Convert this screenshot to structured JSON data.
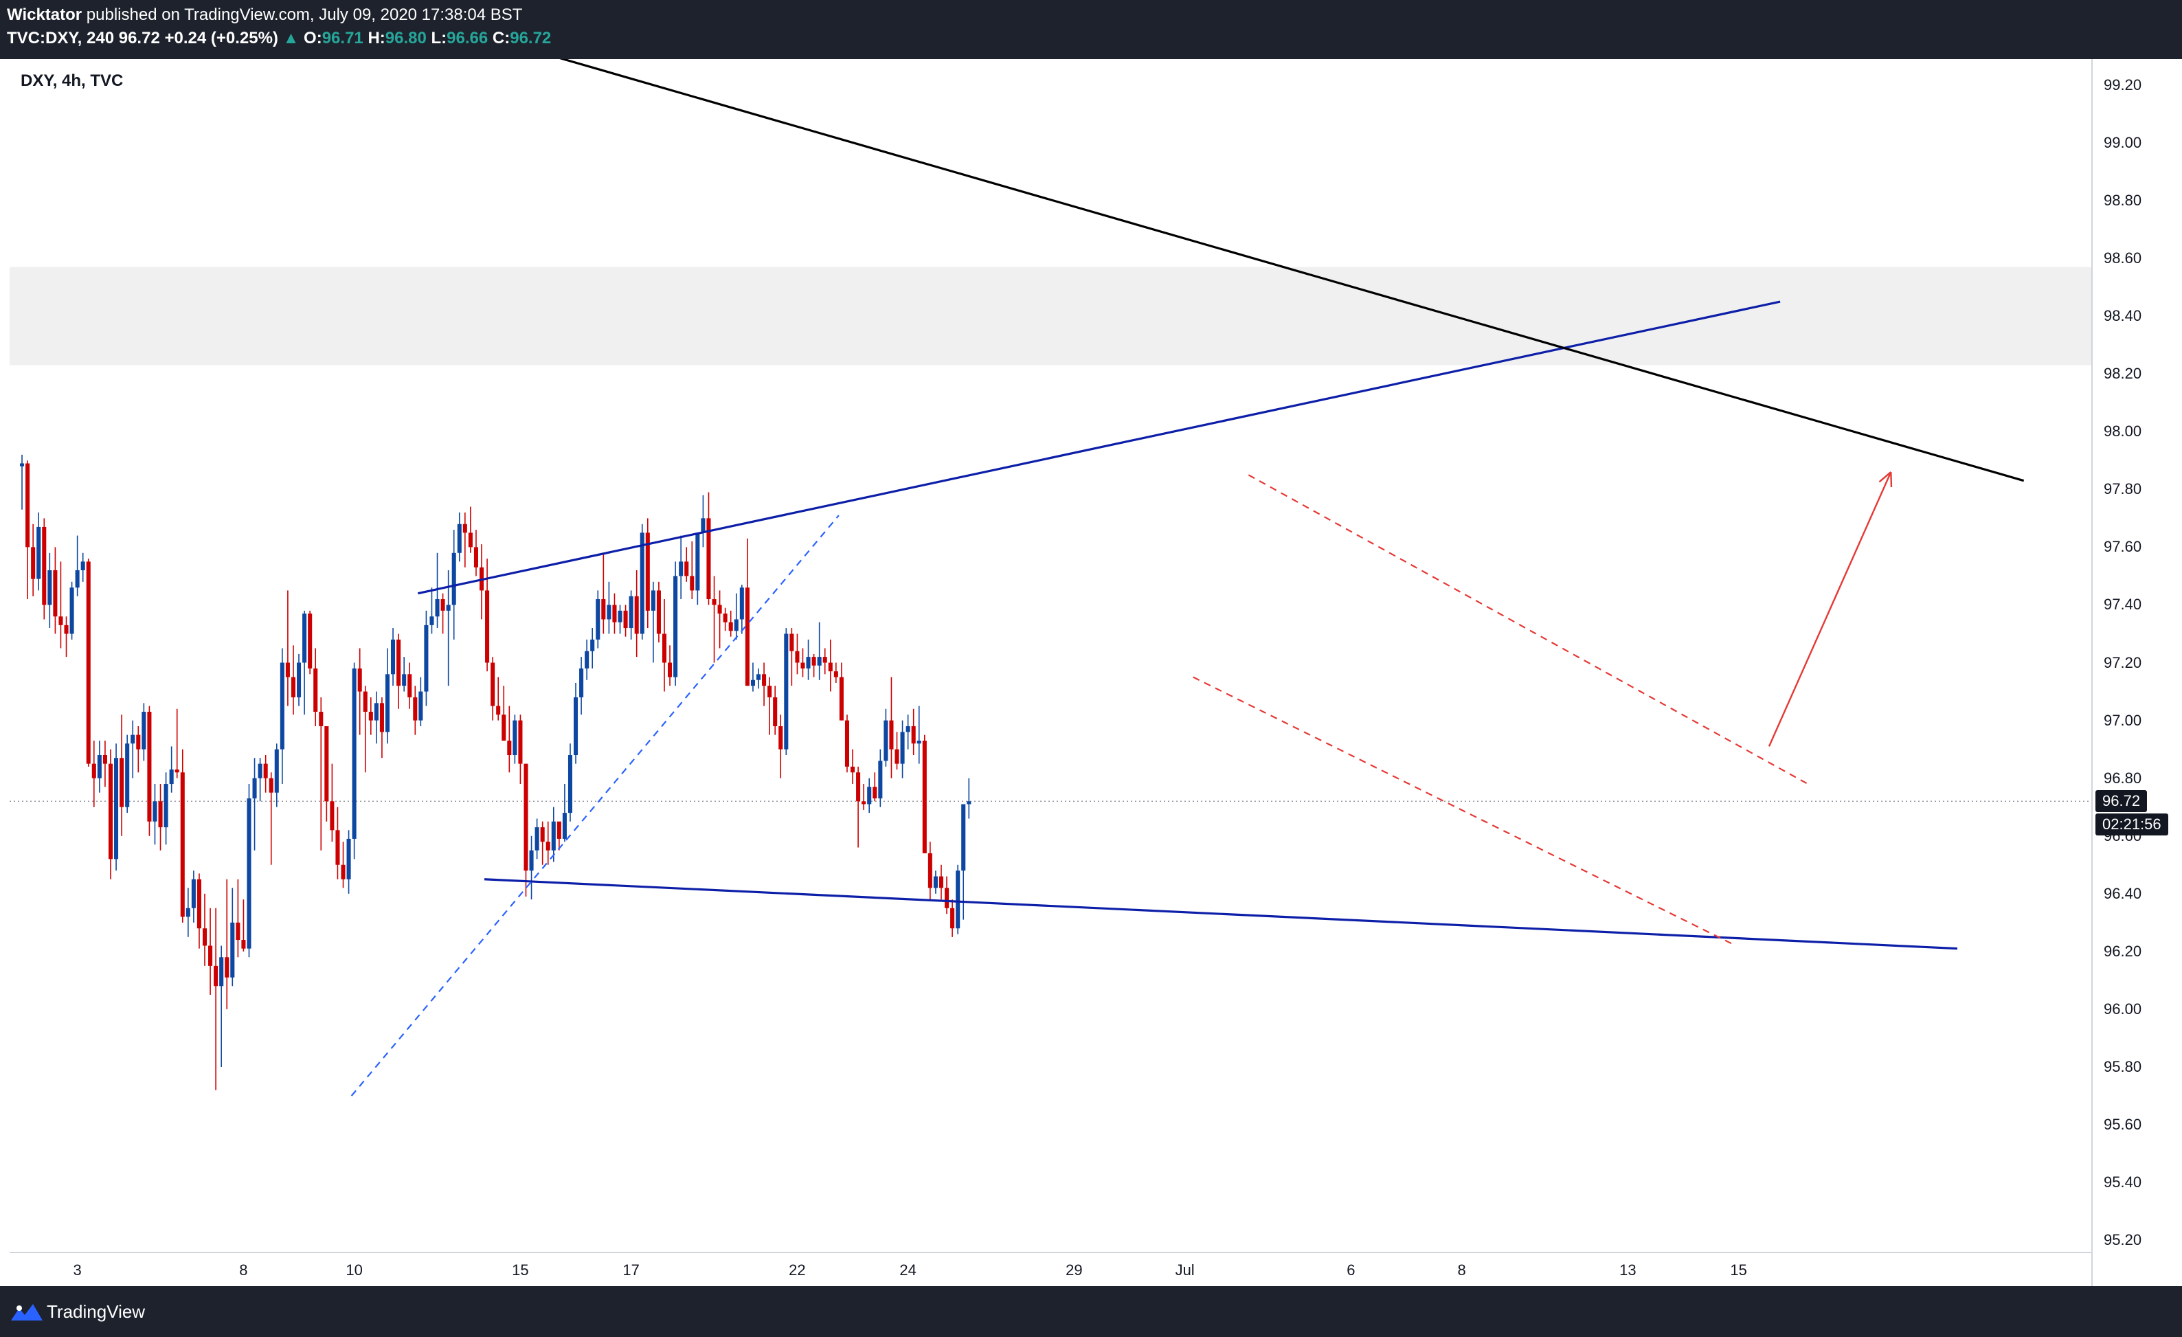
{
  "header": {
    "publisher": "Wicktator",
    "published_text": " published on TradingView.com, July 09, 2020 17:38:04 BST",
    "symbol": "TVC:DXY, 240",
    "last": "96.72",
    "change": "+0.24 (+0.25%)",
    "o_label": "O:",
    "o_value": "96.71",
    "h_label": "H:",
    "h_value": "96.80",
    "l_label": "L:",
    "l_value": "96.66",
    "c_label": "C:",
    "c_value": "96.72"
  },
  "chart_label": "DXY, 4h, TVC",
  "footer": {
    "brand": "TradingView"
  },
  "colors": {
    "up": "#0d47a1",
    "down": "#cc0000",
    "trendline": "#0d1fa8",
    "resistance": "#000000",
    "channel": "#e53935",
    "zone": "#f0f0f0",
    "price_tag": "#131722"
  },
  "chart_data": {
    "type": "candlestick",
    "title": "",
    "ylim": [
      95.16,
      99.29
    ],
    "price_axis_ticks": [
      "99.20",
      "99.00",
      "98.80",
      "98.60",
      "98.40",
      "98.20",
      "98.00",
      "97.80",
      "97.60",
      "97.40",
      "97.20",
      "97.00",
      "96.80",
      "96.60",
      "96.40",
      "96.20",
      "96.00",
      "95.80",
      "95.60",
      "95.40",
      "95.20"
    ],
    "time_axis_ticks": [
      {
        "label": "3",
        "idx": 10
      },
      {
        "label": "8",
        "idx": 40
      },
      {
        "label": "10",
        "idx": 60
      },
      {
        "label": "15",
        "idx": 90
      },
      {
        "label": "17",
        "idx": 110
      },
      {
        "label": "22",
        "idx": 140
      },
      {
        "label": "24",
        "idx": 160
      },
      {
        "label": "29",
        "idx": 190
      },
      {
        "label": "Jul",
        "idx": 210
      },
      {
        "label": "6",
        "idx": 240
      },
      {
        "label": "8",
        "idx": 260
      },
      {
        "label": "13",
        "idx": 290
      },
      {
        "label": "15",
        "idx": 310
      }
    ],
    "last_price": "96.72",
    "countdown": "02:21:56",
    "zone": [
      98.23,
      98.57
    ],
    "candles": [
      [
        97.88,
        97.92,
        97.73,
        97.89
      ],
      [
        97.89,
        97.9,
        97.42,
        97.6
      ],
      [
        97.6,
        97.68,
        97.43,
        97.49
      ],
      [
        97.49,
        97.72,
        97.45,
        97.67
      ],
      [
        97.67,
        97.7,
        97.35,
        97.4
      ],
      [
        97.4,
        97.58,
        97.32,
        97.52
      ],
      [
        97.52,
        97.6,
        97.3,
        97.36
      ],
      [
        97.36,
        97.55,
        97.25,
        97.33
      ],
      [
        97.33,
        97.36,
        97.22,
        97.3
      ],
      [
        97.3,
        97.48,
        97.28,
        97.46
      ],
      [
        97.46,
        97.64,
        97.43,
        97.52
      ],
      [
        97.52,
        97.58,
        97.48,
        97.55
      ],
      [
        97.55,
        97.56,
        96.84,
        96.85
      ],
      [
        96.85,
        96.93,
        96.7,
        96.8
      ],
      [
        96.8,
        96.93,
        96.75,
        96.88
      ],
      [
        96.88,
        96.93,
        96.77,
        96.85
      ],
      [
        96.85,
        96.9,
        96.45,
        96.52
      ],
      [
        96.52,
        96.92,
        96.48,
        96.87
      ],
      [
        96.87,
        97.02,
        96.6,
        96.7
      ],
      [
        96.7,
        96.95,
        96.68,
        96.92
      ],
      [
        96.92,
        97.0,
        96.8,
        96.95
      ],
      [
        96.95,
        96.98,
        96.82,
        96.9
      ],
      [
        96.9,
        97.06,
        96.86,
        97.03
      ],
      [
        97.03,
        97.05,
        96.6,
        96.65
      ],
      [
        96.65,
        96.78,
        96.57,
        96.72
      ],
      [
        96.72,
        96.78,
        96.55,
        96.63
      ],
      [
        96.63,
        96.82,
        96.57,
        96.78
      ],
      [
        96.78,
        96.91,
        96.75,
        96.83
      ],
      [
        96.83,
        97.04,
        96.8,
        96.82
      ],
      [
        96.82,
        96.9,
        96.3,
        96.32
      ],
      [
        96.32,
        96.42,
        96.25,
        96.35
      ],
      [
        96.35,
        96.48,
        96.3,
        96.45
      ],
      [
        96.45,
        96.47,
        96.21,
        96.28
      ],
      [
        96.28,
        96.4,
        96.15,
        96.22
      ],
      [
        96.22,
        96.35,
        96.05,
        96.15
      ],
      [
        96.15,
        96.35,
        95.72,
        96.08
      ],
      [
        96.08,
        96.22,
        95.8,
        96.18
      ],
      [
        96.18,
        96.45,
        96.0,
        96.11
      ],
      [
        96.11,
        96.42,
        96.08,
        96.3
      ],
      [
        96.3,
        96.45,
        96.18,
        96.24
      ],
      [
        96.24,
        96.38,
        96.2,
        96.21
      ],
      [
        96.21,
        96.78,
        96.18,
        96.73
      ],
      [
        96.73,
        96.87,
        96.55,
        96.8
      ],
      [
        96.8,
        96.87,
        96.72,
        96.85
      ],
      [
        96.85,
        96.88,
        96.75,
        96.8
      ],
      [
        96.8,
        96.82,
        96.5,
        96.75
      ],
      [
        96.75,
        96.92,
        96.7,
        96.9
      ],
      [
        96.9,
        97.25,
        96.78,
        97.2
      ],
      [
        97.2,
        97.45,
        97.05,
        97.15
      ],
      [
        97.15,
        97.26,
        97.02,
        97.08
      ],
      [
        97.08,
        97.23,
        97.05,
        97.2
      ],
      [
        97.2,
        97.38,
        97.02,
        97.37
      ],
      [
        97.37,
        97.38,
        97.16,
        97.18
      ],
      [
        97.18,
        97.25,
        96.98,
        97.03
      ],
      [
        97.03,
        97.08,
        96.55,
        96.98
      ],
      [
        96.98,
        96.98,
        96.65,
        96.72
      ],
      [
        96.72,
        96.85,
        96.58,
        96.62
      ],
      [
        96.62,
        96.7,
        96.45,
        96.5
      ],
      [
        96.5,
        96.58,
        96.42,
        96.45
      ],
      [
        96.45,
        96.62,
        96.4,
        96.59
      ],
      [
        96.59,
        97.2,
        96.52,
        97.18
      ],
      [
        97.18,
        97.25,
        96.95,
        97.1
      ],
      [
        97.1,
        97.12,
        96.82,
        97.03
      ],
      [
        97.03,
        97.08,
        96.95,
        97.0
      ],
      [
        97.0,
        97.1,
        96.92,
        97.06
      ],
      [
        97.06,
        97.08,
        96.87,
        96.96
      ],
      [
        96.96,
        97.25,
        96.92,
        97.16
      ],
      [
        97.16,
        97.32,
        97.12,
        97.28
      ],
      [
        97.28,
        97.3,
        97.04,
        97.12
      ],
      [
        97.12,
        97.22,
        97.1,
        97.16
      ],
      [
        97.16,
        97.2,
        97.04,
        97.08
      ],
      [
        97.08,
        97.12,
        96.95,
        97.0
      ],
      [
        97.0,
        97.15,
        96.98,
        97.1
      ],
      [
        97.1,
        97.38,
        97.05,
        97.33
      ],
      [
        97.33,
        97.46,
        97.3,
        97.36
      ],
      [
        97.36,
        97.58,
        97.32,
        97.42
      ],
      [
        97.42,
        97.44,
        97.3,
        97.38
      ],
      [
        97.38,
        97.52,
        97.12,
        97.4
      ],
      [
        97.4,
        97.66,
        97.28,
        97.58
      ],
      [
        97.58,
        97.72,
        97.55,
        97.68
      ],
      [
        97.68,
        97.72,
        97.53,
        97.65
      ],
      [
        97.65,
        97.74,
        97.58,
        97.6
      ],
      [
        97.6,
        97.66,
        97.5,
        97.53
      ],
      [
        97.53,
        97.61,
        97.35,
        97.45
      ],
      [
        97.45,
        97.56,
        97.17,
        97.2
      ],
      [
        97.2,
        97.22,
        97.0,
        97.05
      ],
      [
        97.05,
        97.15,
        97.0,
        97.02
      ],
      [
        97.02,
        97.12,
        96.93,
        96.93
      ],
      [
        96.93,
        97.05,
        96.82,
        96.88
      ],
      [
        96.88,
        97.02,
        96.85,
        97.0
      ],
      [
        97.0,
        97.02,
        96.78,
        96.85
      ],
      [
        96.85,
        96.85,
        96.39,
        96.48
      ],
      [
        96.48,
        96.6,
        96.38,
        96.55
      ],
      [
        96.55,
        96.66,
        96.52,
        96.63
      ],
      [
        96.63,
        96.65,
        96.5,
        96.58
      ],
      [
        96.58,
        96.65,
        96.5,
        96.55
      ],
      [
        96.55,
        96.7,
        96.51,
        96.65
      ],
      [
        96.65,
        96.62,
        96.55,
        96.59
      ],
      [
        96.59,
        96.78,
        96.58,
        96.68
      ],
      [
        96.68,
        96.92,
        96.65,
        96.88
      ],
      [
        96.88,
        97.13,
        96.85,
        97.08
      ],
      [
        97.08,
        97.22,
        97.02,
        97.18
      ],
      [
        97.18,
        97.28,
        97.14,
        97.24
      ],
      [
        97.24,
        97.32,
        97.18,
        97.28
      ],
      [
        97.28,
        97.45,
        97.25,
        97.42
      ],
      [
        97.42,
        97.58,
        97.3,
        97.35
      ],
      [
        97.35,
        97.48,
        97.3,
        97.4
      ],
      [
        97.4,
        97.44,
        97.3,
        97.34
      ],
      [
        97.34,
        97.4,
        97.3,
        97.38
      ],
      [
        97.38,
        97.4,
        97.29,
        97.32
      ],
      [
        97.32,
        97.45,
        97.28,
        97.43
      ],
      [
        97.43,
        97.52,
        97.22,
        97.3
      ],
      [
        97.3,
        97.68,
        97.28,
        97.65
      ],
      [
        97.65,
        97.7,
        97.32,
        97.38
      ],
      [
        97.38,
        97.48,
        97.2,
        97.45
      ],
      [
        97.45,
        97.48,
        97.27,
        97.3
      ],
      [
        97.3,
        97.42,
        97.1,
        97.2
      ],
      [
        97.2,
        97.26,
        97.12,
        97.15
      ],
      [
        97.15,
        97.55,
        97.12,
        97.5
      ],
      [
        97.5,
        97.64,
        97.42,
        97.55
      ],
      [
        97.55,
        97.6,
        97.48,
        97.5
      ],
      [
        97.5,
        97.62,
        97.42,
        97.45
      ],
      [
        97.45,
        97.65,
        97.4,
        97.65
      ],
      [
        97.65,
        97.78,
        97.6,
        97.7
      ],
      [
        97.7,
        97.79,
        97.4,
        97.42
      ],
      [
        97.42,
        97.5,
        97.2,
        97.4
      ],
      [
        97.4,
        97.45,
        97.25,
        97.37
      ],
      [
        97.37,
        97.39,
        97.31,
        97.34
      ],
      [
        97.34,
        97.38,
        97.29,
        97.31
      ],
      [
        97.31,
        97.44,
        97.28,
        97.35
      ],
      [
        97.35,
        97.47,
        97.3,
        97.46
      ],
      [
        97.46,
        97.63,
        97.12,
        97.12
      ],
      [
        97.12,
        97.2,
        97.1,
        97.14
      ],
      [
        97.14,
        97.18,
        97.11,
        97.16
      ],
      [
        97.16,
        97.2,
        97.05,
        97.12
      ],
      [
        97.12,
        97.15,
        96.95,
        97.08
      ],
      [
        97.08,
        97.12,
        96.95,
        96.98
      ],
      [
        96.98,
        97.02,
        96.8,
        96.9
      ],
      [
        96.9,
        97.32,
        96.88,
        97.3
      ],
      [
        97.3,
        97.32,
        97.12,
        97.24
      ],
      [
        97.24,
        97.3,
        97.16,
        97.2
      ],
      [
        97.2,
        97.25,
        97.15,
        97.18
      ],
      [
        97.18,
        97.28,
        97.14,
        97.22
      ],
      [
        97.22,
        97.23,
        97.15,
        97.19
      ],
      [
        97.19,
        97.34,
        97.14,
        97.22
      ],
      [
        97.22,
        97.25,
        97.16,
        97.2
      ],
      [
        97.2,
        97.28,
        97.1,
        97.17
      ],
      [
        97.17,
        97.2,
        97.13,
        97.15
      ],
      [
        97.15,
        97.2,
        97.0,
        97.0
      ],
      [
        97.0,
        97.02,
        96.82,
        96.84
      ],
      [
        96.84,
        96.9,
        96.78,
        96.82
      ],
      [
        96.82,
        96.84,
        96.56,
        96.72
      ],
      [
        96.72,
        96.78,
        96.69,
        96.71
      ],
      [
        96.71,
        96.8,
        96.68,
        96.77
      ],
      [
        96.77,
        96.82,
        96.72,
        96.73
      ],
      [
        96.73,
        96.9,
        96.7,
        96.86
      ],
      [
        96.86,
        97.04,
        96.84,
        97.0
      ],
      [
        97.0,
        97.15,
        96.8,
        96.9
      ],
      [
        96.9,
        96.96,
        96.83,
        96.85
      ],
      [
        96.85,
        97.0,
        96.8,
        96.96
      ],
      [
        96.96,
        97.02,
        96.9,
        96.98
      ],
      [
        96.98,
        97.04,
        96.88,
        96.92
      ],
      [
        96.92,
        97.05,
        96.85,
        96.93
      ],
      [
        96.93,
        96.95,
        96.54,
        96.54
      ],
      [
        96.54,
        96.58,
        96.38,
        96.42
      ],
      [
        96.42,
        96.48,
        96.4,
        96.46
      ],
      [
        96.46,
        96.5,
        96.38,
        96.42
      ],
      [
        96.42,
        96.46,
        96.33,
        96.35
      ],
      [
        96.35,
        96.38,
        96.25,
        96.28
      ],
      [
        96.28,
        96.5,
        96.26,
        96.48
      ],
      [
        96.48,
        96.71,
        96.31,
        96.71
      ],
      [
        96.71,
        96.8,
        96.66,
        96.72
      ]
    ],
    "trendlines": [
      {
        "name": "blue-upper",
        "style": "solid",
        "points": [
          [
            72,
            97.44
          ],
          [
            318,
            98.45
          ]
        ]
      },
      {
        "name": "blue-lower",
        "style": "solid",
        "points": [
          [
            84,
            96.45
          ],
          [
            350,
            96.21
          ]
        ]
      },
      {
        "name": "blue-dashed",
        "style": "dashed",
        "points": [
          [
            60,
            95.7
          ],
          [
            148,
            97.71
          ]
        ]
      },
      {
        "name": "black-resistance",
        "style": "solid",
        "points": [
          [
            82,
            99.38
          ],
          [
            362,
            97.83
          ]
        ]
      },
      {
        "name": "red-channel-upper",
        "style": "dashed",
        "points": [
          [
            222,
            97.85
          ],
          [
            323,
            96.78
          ]
        ]
      },
      {
        "name": "red-channel-lower",
        "style": "dashed",
        "points": [
          [
            212,
            97.15
          ],
          [
            310,
            96.22
          ]
        ]
      }
    ],
    "arrow": {
      "from": [
        316,
        96.91
      ],
      "to": [
        338,
        97.86
      ]
    }
  }
}
